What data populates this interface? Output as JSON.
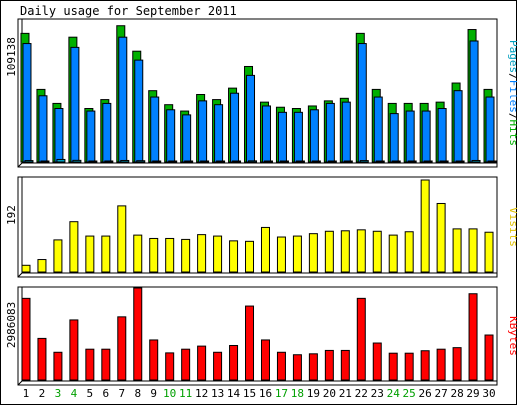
{
  "chart_data": [
    {
      "type": "bar",
      "title": "Daily usage for September 2011",
      "axis_label": "Pages/Files/Hits",
      "axis_label_parts": [
        "Pages",
        "Files",
        "Hits"
      ],
      "max_label": "109138",
      "ylim": [
        0,
        109138
      ],
      "categories": [
        "1",
        "2",
        "3",
        "4",
        "5",
        "6",
        "7",
        "8",
        "9",
        "10",
        "11",
        "12",
        "13",
        "14",
        "15",
        "16",
        "17",
        "18",
        "19",
        "20",
        "21",
        "22",
        "23",
        "24",
        "25",
        "26",
        "27",
        "28",
        "29",
        "30"
      ],
      "weekend_days": [
        "3",
        "4",
        "10",
        "11",
        "17",
        "18",
        "24",
        "25"
      ],
      "series": [
        {
          "name": "Hits",
          "color": "#00b000",
          "values": [
            101000,
            57000,
            46000,
            98000,
            42000,
            49000,
            107000,
            87000,
            56000,
            45000,
            40000,
            53000,
            49000,
            58000,
            75000,
            47000,
            43000,
            42000,
            44000,
            48000,
            50000,
            101000,
            57000,
            46000,
            46000,
            46000,
            47000,
            62000,
            104000,
            57000
          ]
        },
        {
          "name": "Files",
          "color": "#0080ff",
          "values": [
            93000,
            52000,
            42000,
            90000,
            40000,
            46000,
            98000,
            80000,
            51000,
            41000,
            37000,
            48000,
            45000,
            54000,
            68000,
            44000,
            39000,
            39000,
            41000,
            46000,
            47000,
            93000,
            51000,
            38000,
            40000,
            40000,
            42000,
            56000,
            95000,
            51000
          ]
        },
        {
          "name": "Pages",
          "color": "#00a0c0",
          "values": [
            1100,
            700,
            2000,
            1300,
            600,
            800,
            1200,
            1000,
            700,
            600,
            500,
            700,
            600,
            700,
            900,
            600,
            500,
            500,
            500,
            600,
            600,
            1100,
            700,
            500,
            500,
            500,
            600,
            700,
            1200,
            700
          ]
        }
      ]
    },
    {
      "type": "bar",
      "axis_label": "Visits",
      "max_label": "192",
      "ylim": [
        0,
        192
      ],
      "categories": [
        "1",
        "2",
        "3",
        "4",
        "5",
        "6",
        "7",
        "8",
        "9",
        "10",
        "11",
        "12",
        "13",
        "14",
        "15",
        "16",
        "17",
        "18",
        "19",
        "20",
        "21",
        "22",
        "23",
        "24",
        "25",
        "26",
        "27",
        "28",
        "29",
        "30"
      ],
      "series": [
        {
          "name": "Visits",
          "color": "#ffff00",
          "values": [
            14,
            26,
            67,
            105,
            75,
            75,
            138,
            77,
            70,
            70,
            68,
            78,
            75,
            65,
            64,
            93,
            73,
            75,
            80,
            85,
            86,
            88,
            85,
            77,
            84,
            192,
            143,
            90,
            90,
            83
          ]
        }
      ]
    },
    {
      "type": "bar",
      "axis_label": "KBytes",
      "max_label": "2986083",
      "ylim": [
        0,
        2986083
      ],
      "categories": [
        "1",
        "2",
        "3",
        "4",
        "5",
        "6",
        "7",
        "8",
        "9",
        "10",
        "11",
        "12",
        "13",
        "14",
        "15",
        "16",
        "17",
        "18",
        "19",
        "20",
        "21",
        "22",
        "23",
        "24",
        "25",
        "26",
        "27",
        "28",
        "29",
        "30"
      ],
      "series": [
        {
          "name": "KBytes",
          "color": "#ff0000",
          "values": [
            2650000,
            1350000,
            900000,
            1950000,
            1000000,
            1000000,
            2050000,
            2986000,
            1300000,
            880000,
            1000000,
            1100000,
            900000,
            1120000,
            2400000,
            1300000,
            900000,
            820000,
            850000,
            960000,
            960000,
            2650000,
            1200000,
            870000,
            870000,
            950000,
            1000000,
            1050000,
            2800000,
            1460000
          ]
        }
      ]
    }
  ]
}
